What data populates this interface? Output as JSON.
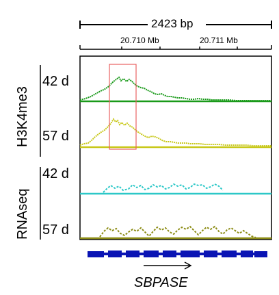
{
  "scale": {
    "length_label": "2423 bp"
  },
  "coordinates": {
    "ticks": [
      "20.710 Mb",
      "20.711 Mb"
    ]
  },
  "groups": [
    {
      "label": "H3K4me3",
      "tracks": [
        {
          "label": "42 d",
          "color": "#1a9a1a"
        },
        {
          "label": "57 d",
          "color": "#c8c81a"
        }
      ]
    },
    {
      "label": "RNAseq",
      "tracks": [
        {
          "label": "42 d",
          "color": "#2cc8c8"
        },
        {
          "label": "57 d",
          "color": "#8c8c14"
        }
      ]
    }
  ],
  "highlight": {
    "color": "#e86060"
  },
  "gene": {
    "name": "SBPASE",
    "color": "#0a14b4",
    "strand": "+"
  }
}
